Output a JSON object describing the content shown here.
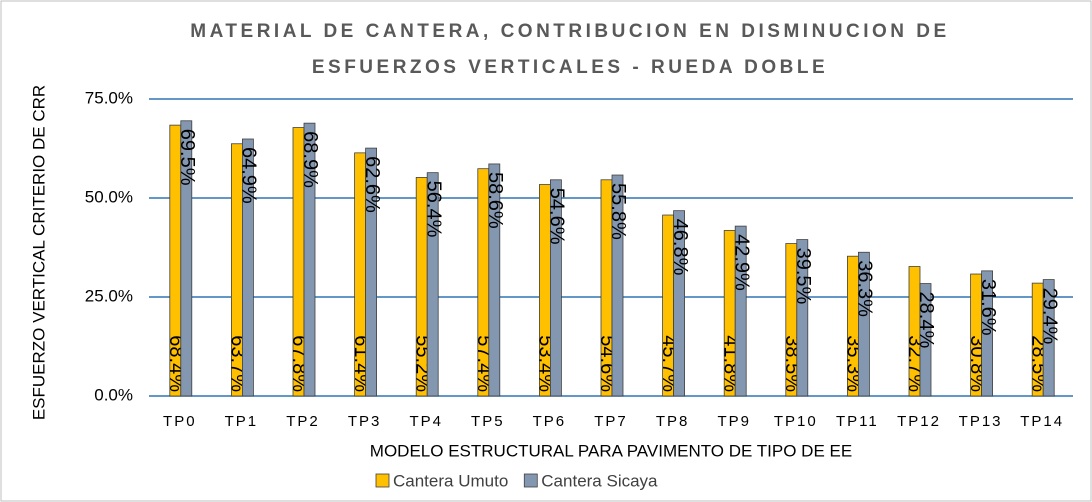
{
  "chart_data": {
    "type": "bar",
    "title": [
      "MATERIAL DE CANTERA, CONTRIBUCION EN DISMINUCION DE",
      "ESFUERZOS VERTICALES - RUEDA DOBLE"
    ],
    "x_label": "MODELO ESTRUCTURAL PARA PAVIMENTO DE TIPO DE EE",
    "y_label": "ESFUERZO VERTICAL CRITERIO DE CRR",
    "categories": [
      "TP0",
      "TP1",
      "TP2",
      "TP3",
      "TP4",
      "TP5",
      "TP6",
      "TP7",
      "TP8",
      "TP9",
      "TP10",
      "TP11",
      "TP12",
      "TP13",
      "TP14"
    ],
    "series": [
      {
        "name": "Cantera Umuto",
        "color": "#ffc000",
        "values": [
          68.4,
          63.7,
          67.8,
          61.4,
          55.2,
          57.4,
          53.4,
          54.6,
          45.7,
          41.8,
          38.5,
          35.3,
          32.7,
          30.8,
          28.5
        ],
        "value_labels": [
          "68.4%",
          "63.7%",
          "67.8%",
          "61.4%",
          "55.2%",
          "57.4%",
          "53.4%",
          "54.6%",
          "45.7%",
          "41.8%",
          "38.5%",
          "35.3%",
          "32.7%",
          "30.8%",
          "28.5%"
        ]
      },
      {
        "name": "Cantera Sicaya",
        "color": "#8497b0",
        "values": [
          69.5,
          64.9,
          68.9,
          62.6,
          56.4,
          58.6,
          54.6,
          55.8,
          46.8,
          42.9,
          39.5,
          36.3,
          28.4,
          31.6,
          29.4
        ],
        "value_labels": [
          "69.5%",
          "64.9%",
          "68.9%",
          "62.6%",
          "56.4%",
          "58.6%",
          "54.6%",
          "55.8%",
          "46.8%",
          "42.9%",
          "39.5%",
          "36.3%",
          "28.4%",
          "31.6%",
          "29.4%"
        ]
      }
    ],
    "ylim": [
      0,
      75
    ],
    "yticks": [
      {
        "value": 0,
        "label": "0.0%"
      },
      {
        "value": 25,
        "label": "25.0%"
      },
      {
        "value": 50,
        "label": "50.0%"
      },
      {
        "value": 75,
        "label": "75.0%"
      }
    ],
    "grid": true,
    "legend": "bottom"
  }
}
